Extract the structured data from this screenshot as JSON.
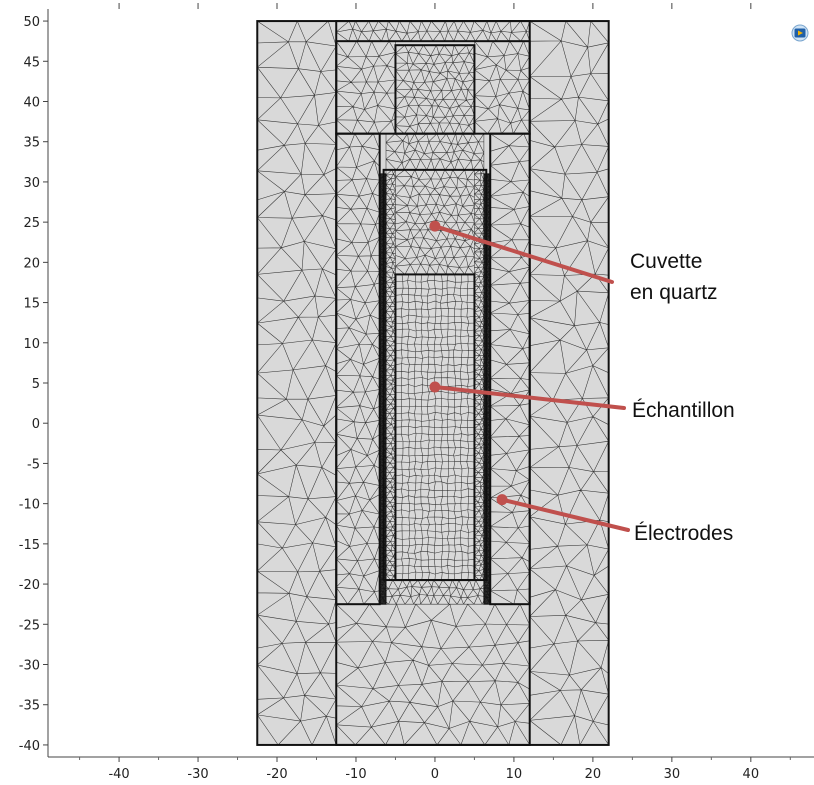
{
  "viewer": {
    "toolbar_icon": "comsol-logo-icon"
  },
  "axes": {
    "x_ticks": [
      "-40",
      "-30",
      "-20",
      "-10",
      "0",
      "10",
      "20",
      "30",
      "40"
    ],
    "x_values": [
      -40,
      -30,
      -20,
      -10,
      0,
      10,
      20,
      30,
      40
    ],
    "y_ticks": [
      "50",
      "45",
      "40",
      "35",
      "30",
      "25",
      "20",
      "15",
      "10",
      "5",
      "0",
      "-5",
      "-10",
      "-15",
      "-20",
      "-25",
      "-30",
      "-35",
      "-40"
    ],
    "y_values": [
      50,
      45,
      40,
      35,
      30,
      25,
      20,
      15,
      10,
      5,
      0,
      -5,
      -10,
      -15,
      -20,
      -25,
      -30,
      -35,
      -40
    ],
    "xlim": [
      -49,
      48
    ],
    "ylim": [
      -41.5,
      51.5
    ]
  },
  "geometry": {
    "outer_domain": [
      -22.5,
      -40,
      22,
      50
    ],
    "inner_frame": [
      -12.5,
      -40,
      12,
      50
    ],
    "top_chamber": [
      -12.5,
      36,
      12,
      47.5
    ],
    "top_slot": [
      -5,
      36,
      5,
      47
    ],
    "left_electrode": [
      -7,
      -22.5,
      -6.2,
      31
    ],
    "right_electrode": [
      6.2,
      -22.5,
      7,
      31
    ],
    "left_pocket": [
      -12.5,
      -22.5,
      -7,
      36
    ],
    "right_pocket": [
      7,
      -22.5,
      12,
      36
    ],
    "cuvette": [
      -6.5,
      -19.5,
      6.5,
      31.5
    ],
    "sample": [
      -5,
      -19.5,
      5,
      18.5
    ]
  },
  "mesh": {
    "fill": "#d9d9d9",
    "line": "#222222"
  },
  "annotations": {
    "color": "#c0504d",
    "items": [
      {
        "lines": [
          "Cuvette",
          "en quartz"
        ],
        "point": [
          0,
          24.5
        ]
      },
      {
        "lines": [
          "Échantillon"
        ],
        "point": [
          0,
          4.5
        ]
      },
      {
        "lines": [
          "Électrodes"
        ],
        "point": [
          8.5,
          -9.5
        ]
      }
    ]
  }
}
